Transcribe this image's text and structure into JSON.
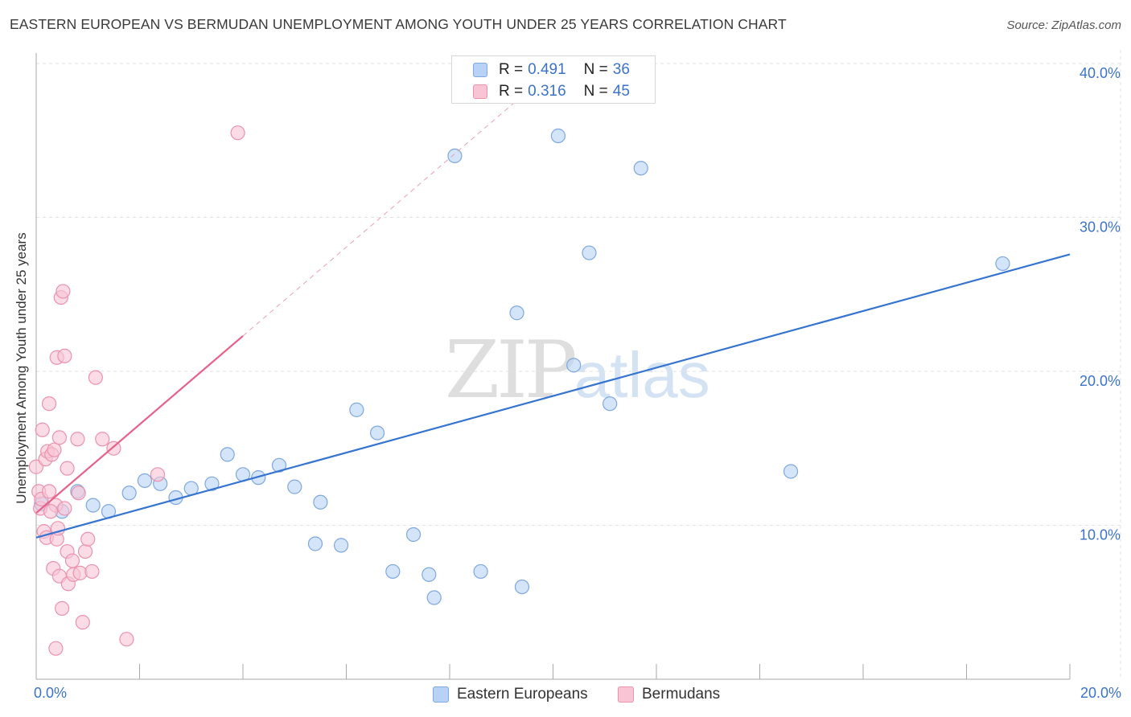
{
  "title": "EASTERN EUROPEAN VS BERMUDAN UNEMPLOYMENT AMONG YOUTH UNDER 25 YEARS CORRELATION CHART",
  "source": "Source: ZipAtlas.com",
  "watermark": {
    "zip": "ZIP",
    "atlas": "atlas"
  },
  "legend": {
    "r_label": "R =",
    "n_label": "N =",
    "rows": [
      {
        "name": "Eastern Europeans",
        "r": "0.491",
        "n": "36",
        "fill": "#b7d2f5",
        "stroke": "#7fa8de"
      },
      {
        "name": "Bermudans",
        "r": "0.316",
        "n": "45",
        "fill": "#f9c5d5",
        "stroke": "#eb92ad"
      }
    ]
  },
  "chart_data": {
    "type": "scatter",
    "title": "EASTERN EUROPEAN VS BERMUDAN UNEMPLOYMENT AMONG YOUTH UNDER 25 YEARS CORRELATION CHART",
    "xlabel": "",
    "ylabel": "Unemployment Among Youth under 25 years",
    "xlim": [
      0,
      20
    ],
    "ylim": [
      0,
      40
    ],
    "x_tick_labels": [
      "0.0%",
      "20.0%"
    ],
    "y_ticks": [
      10,
      20,
      30,
      40
    ],
    "y_tick_labels": [
      "10.0%",
      "20.0%",
      "30.0%",
      "40.0%"
    ],
    "grid": true,
    "legend_position": "top-center",
    "series": [
      {
        "name": "Eastern Europeans",
        "color": "#7fa8de",
        "fill": "#b7d2f5",
        "trend": {
          "x": [
            0,
            20
          ],
          "y": [
            9.2,
            27.6
          ],
          "color": "#3574d0"
        },
        "points": [
          {
            "x": 0.1,
            "y": 11.4
          },
          {
            "x": 0.5,
            "y": 10.9
          },
          {
            "x": 0.8,
            "y": 12.2
          },
          {
            "x": 1.1,
            "y": 11.3
          },
          {
            "x": 1.4,
            "y": 10.9
          },
          {
            "x": 1.8,
            "y": 12.1
          },
          {
            "x": 2.1,
            "y": 12.9
          },
          {
            "x": 2.4,
            "y": 12.7
          },
          {
            "x": 2.7,
            "y": 11.8
          },
          {
            "x": 3.0,
            "y": 12.4
          },
          {
            "x": 3.4,
            "y": 12.7
          },
          {
            "x": 3.7,
            "y": 14.6
          },
          {
            "x": 4.0,
            "y": 13.3
          },
          {
            "x": 4.3,
            "y": 13.1
          },
          {
            "x": 4.7,
            "y": 13.9
          },
          {
            "x": 5.0,
            "y": 12.5
          },
          {
            "x": 5.4,
            "y": 8.8
          },
          {
            "x": 5.5,
            "y": 11.5
          },
          {
            "x": 5.9,
            "y": 8.7
          },
          {
            "x": 6.2,
            "y": 17.5
          },
          {
            "x": 6.6,
            "y": 16.0
          },
          {
            "x": 6.9,
            "y": 7.0
          },
          {
            "x": 7.3,
            "y": 9.4
          },
          {
            "x": 7.6,
            "y": 6.8
          },
          {
            "x": 7.7,
            "y": 5.3
          },
          {
            "x": 8.1,
            "y": 34.0
          },
          {
            "x": 8.6,
            "y": 7.0
          },
          {
            "x": 9.3,
            "y": 23.8
          },
          {
            "x": 9.4,
            "y": 6.0
          },
          {
            "x": 10.1,
            "y": 35.3
          },
          {
            "x": 10.4,
            "y": 20.4
          },
          {
            "x": 10.7,
            "y": 27.7
          },
          {
            "x": 11.1,
            "y": 17.9
          },
          {
            "x": 11.7,
            "y": 33.2
          },
          {
            "x": 14.6,
            "y": 13.5
          },
          {
            "x": 18.7,
            "y": 27.0
          }
        ]
      },
      {
        "name": "Bermudans",
        "color": "#eb92ad",
        "fill": "#f9c5d5",
        "trend": {
          "x": [
            0,
            4.0
          ],
          "y": [
            10.8,
            22.3
          ],
          "color": "#e7608a"
        },
        "trend_dashed": {
          "x": [
            4.0,
            9.3
          ],
          "y": [
            22.3,
            37.6
          ],
          "color": "#e9a0b6"
        },
        "points": [
          {
            "x": 0.0,
            "y": 13.8
          },
          {
            "x": 0.05,
            "y": 12.2
          },
          {
            "x": 0.08,
            "y": 11.1
          },
          {
            "x": 0.1,
            "y": 11.7
          },
          {
            "x": 0.12,
            "y": 16.2
          },
          {
            "x": 0.15,
            "y": 9.6
          },
          {
            "x": 0.18,
            "y": 14.3
          },
          {
            "x": 0.2,
            "y": 9.2
          },
          {
            "x": 0.22,
            "y": 14.8
          },
          {
            "x": 0.25,
            "y": 12.2
          },
          {
            "x": 0.25,
            "y": 17.9
          },
          {
            "x": 0.3,
            "y": 14.6
          },
          {
            "x": 0.33,
            "y": 7.2
          },
          {
            "x": 0.35,
            "y": 14.9
          },
          {
            "x": 0.38,
            "y": 11.3
          },
          {
            "x": 0.38,
            "y": 2.0
          },
          {
            "x": 0.4,
            "y": 9.1
          },
          {
            "x": 0.4,
            "y": 20.9
          },
          {
            "x": 0.42,
            "y": 9.8
          },
          {
            "x": 0.45,
            "y": 6.7
          },
          {
            "x": 0.45,
            "y": 15.7
          },
          {
            "x": 0.48,
            "y": 24.8
          },
          {
            "x": 0.5,
            "y": 4.6
          },
          {
            "x": 0.52,
            "y": 25.2
          },
          {
            "x": 0.55,
            "y": 11.1
          },
          {
            "x": 0.55,
            "y": 21.0
          },
          {
            "x": 0.6,
            "y": 13.7
          },
          {
            "x": 0.6,
            "y": 8.3
          },
          {
            "x": 0.62,
            "y": 6.2
          },
          {
            "x": 0.7,
            "y": 7.7
          },
          {
            "x": 0.72,
            "y": 6.8
          },
          {
            "x": 0.8,
            "y": 15.6
          },
          {
            "x": 0.82,
            "y": 12.1
          },
          {
            "x": 0.85,
            "y": 6.9
          },
          {
            "x": 0.9,
            "y": 3.7
          },
          {
            "x": 0.95,
            "y": 8.3
          },
          {
            "x": 1.0,
            "y": 9.1
          },
          {
            "x": 1.08,
            "y": 7.0
          },
          {
            "x": 1.15,
            "y": 19.6
          },
          {
            "x": 1.28,
            "y": 15.6
          },
          {
            "x": 1.5,
            "y": 15.0
          },
          {
            "x": 1.75,
            "y": 2.6
          },
          {
            "x": 2.35,
            "y": 13.3
          },
          {
            "x": 3.9,
            "y": 35.5
          },
          {
            "x": 0.28,
            "y": 10.9
          }
        ]
      }
    ]
  }
}
